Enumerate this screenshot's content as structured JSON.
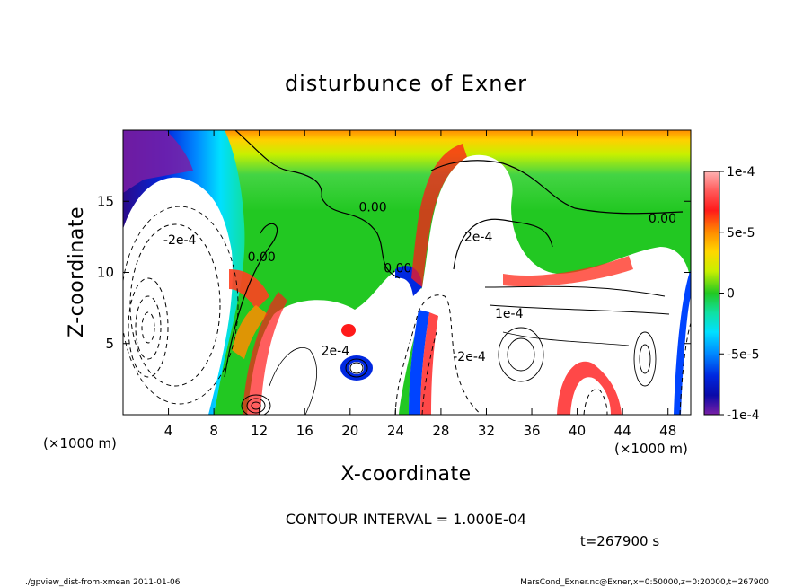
{
  "chart_data": {
    "type": "heatmap",
    "title": "disturbunce of Exner",
    "xlabel": "X-coordinate",
    "ylabel": "Z-coordinate",
    "x_unit": "(×1000 m)",
    "y_unit": "(×1000 m)",
    "xlim": [
      0,
      50
    ],
    "ylim": [
      0,
      20
    ],
    "x_ticks": [
      4,
      8,
      12,
      16,
      20,
      24,
      28,
      32,
      36,
      40,
      44,
      48
    ],
    "y_ticks": [
      5,
      10,
      15
    ],
    "colorbar": {
      "min": -0.0001,
      "max": 0.0001,
      "tick_labels": [
        "1e-4",
        "5e-5",
        "0",
        "-5e-5",
        "-1e-4"
      ],
      "tick_values": [
        0.0001,
        5e-05,
        0,
        -5e-05,
        -0.0001
      ]
    },
    "contour_labels": [
      {
        "text": "-2e-4",
        "x": 5.0,
        "z": 12.0
      },
      {
        "text": "0.00",
        "x": 12.2,
        "z": 10.8
      },
      {
        "text": "0.00",
        "x": 22.0,
        "z": 14.3
      },
      {
        "text": "0.00",
        "x": 24.2,
        "z": 10.0
      },
      {
        "text": "2e-4",
        "x": 31.3,
        "z": 12.2
      },
      {
        "text": "0.00",
        "x": 47.5,
        "z": 13.5
      },
      {
        "text": "2e-4",
        "x": 18.7,
        "z": 4.2
      },
      {
        "text": "-2e-4",
        "x": 30.5,
        "z": 3.8
      },
      {
        "text": "1e-4",
        "x": 34.0,
        "z": 6.8
      }
    ],
    "contour_interval_text": "CONTOUR INTERVAL = 1.000E-04",
    "time_text": "t=267900 s"
  },
  "footer": {
    "left": "./gpview_dist-from-xmean  2011-01-06",
    "right": "MarsCond_Exner.nc@Exner,x=0:50000,z=0:20000,t=267900"
  },
  "colors": {
    "positive_max": "#ff9999",
    "positive": "#ff2a1a",
    "zero": "#33cc33",
    "negative": "#0044ff",
    "negative_max": "#7a1fa6"
  }
}
